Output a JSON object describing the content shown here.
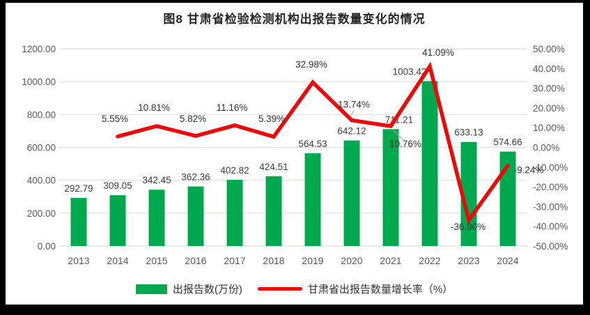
{
  "window": {
    "frame_color": "#000000",
    "background": "#ffffff"
  },
  "title": "图8 甘肃省检验检测机构出报告数量变化的情况",
  "legend": {
    "items": [
      {
        "marker": "bar",
        "label": "出报告数(万份)",
        "color": "#00A950"
      },
      {
        "marker": "line",
        "label": "甘肃省出报告数量增长率（%）",
        "color": "#EA0A0A"
      }
    ],
    "position": "bottom"
  },
  "chart_data": {
    "type": "bar+line",
    "title": "图8 甘肃省检验检测机构出报告数量变化的情况",
    "categories": [
      "2013",
      "2014",
      "2015",
      "2016",
      "2017",
      "2018",
      "2019",
      "2020",
      "2021",
      "2022",
      "2023",
      "2024"
    ],
    "series": [
      {
        "name": "出报告数(万份)",
        "type": "bar",
        "axis": "left",
        "color": "#00A950",
        "values": [
          292.79,
          309.05,
          342.45,
          362.36,
          402.82,
          424.51,
          564.53,
          642.12,
          711.21,
          1003.42,
          633.13,
          574.66
        ],
        "labels": [
          "292.79",
          "309.05",
          "342.45",
          "362.36",
          "402.82",
          "424.51",
          "564.53",
          "642.12",
          "711.21",
          "1003.42",
          "633.13",
          "574.66"
        ]
      },
      {
        "name": "甘肃省出报告数量增长率（%）",
        "type": "line",
        "axis": "right",
        "color": "#EA0A0A",
        "values": [
          null,
          5.55,
          10.81,
          5.82,
          11.16,
          5.39,
          32.98,
          13.74,
          10.76,
          41.09,
          -36.9,
          -9.24
        ],
        "labels": [
          null,
          "5.55%",
          "10.81%",
          "5.82%",
          "11.16%",
          "5.39%",
          "32.98%",
          "13.74%",
          "10.76%",
          "41.09%",
          "-36.90%",
          "-9.24%"
        ]
      }
    ],
    "left_axis": {
      "min": 0,
      "max": 1200,
      "step": 200,
      "ticks": [
        "1200.00",
        "1000.00",
        "800.00",
        "600.00",
        "400.00",
        "200.00",
        "0.00"
      ]
    },
    "right_axis": {
      "min": -50,
      "max": 50,
      "step": 10,
      "ticks": [
        "50.00%",
        "40.00%",
        "30.00%",
        "20.00%",
        "10.00%",
        "0.00%",
        "-10.00%",
        "-20.00%",
        "-30.00%",
        "-40.00%",
        "-50.00%"
      ]
    },
    "grid": true,
    "gridline_color": "#DEDEDE",
    "tick_label_color": "#595959",
    "data_label_color": "#3d3d3d",
    "legend_position": "bottom"
  }
}
